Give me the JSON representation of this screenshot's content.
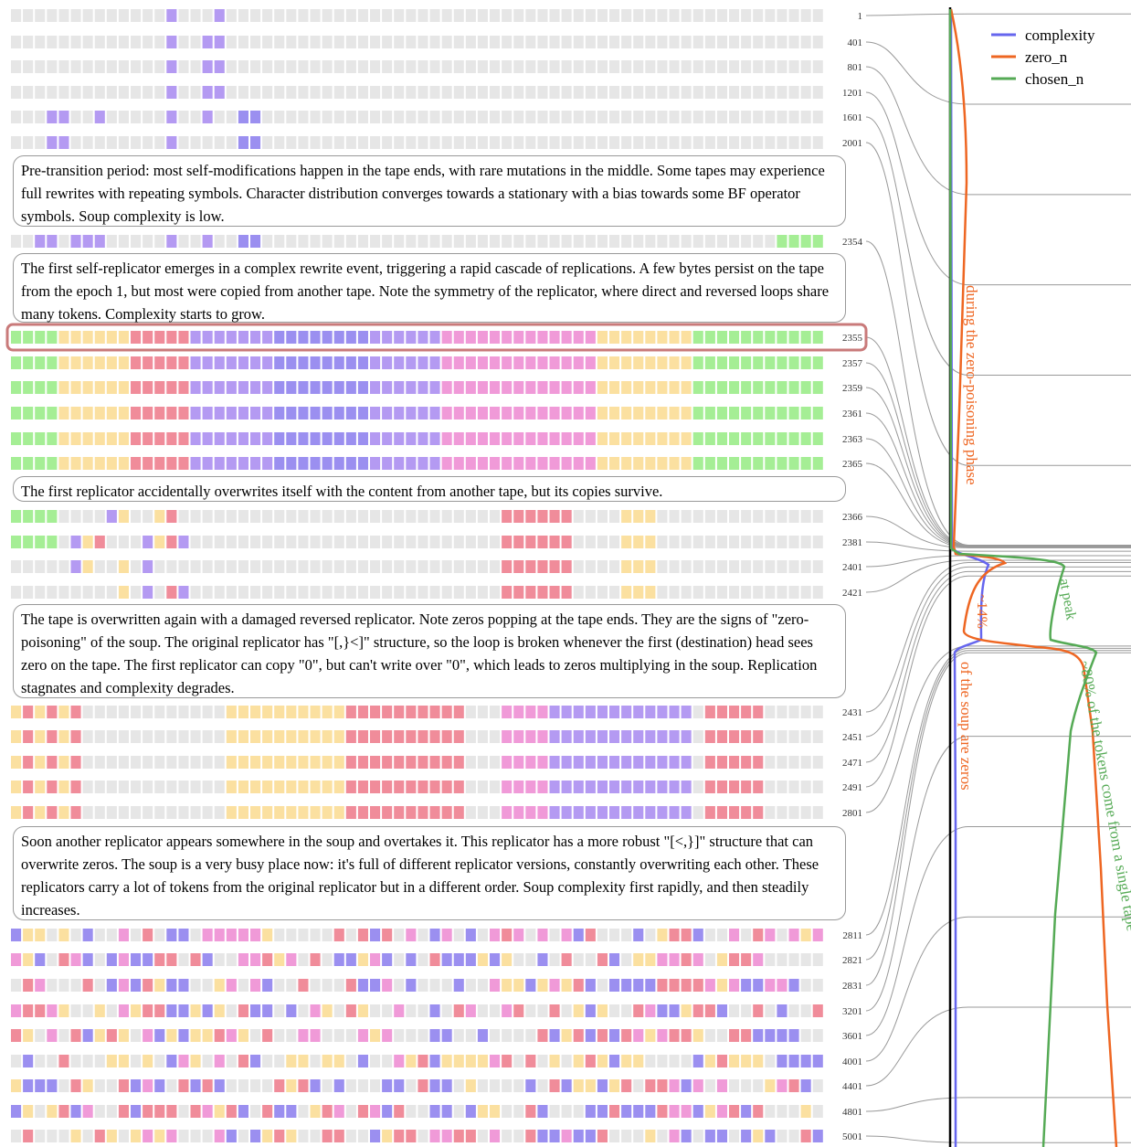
{
  "rows": [
    {
      "epoch": "1"
    },
    {
      "epoch": "401"
    },
    {
      "epoch": "801"
    },
    {
      "epoch": "1201"
    },
    {
      "epoch": "1601"
    },
    {
      "epoch": "2001"
    },
    {
      "epoch": "2354"
    },
    {
      "epoch": "2355"
    },
    {
      "epoch": "2357"
    },
    {
      "epoch": "2359"
    },
    {
      "epoch": "2361"
    },
    {
      "epoch": "2363"
    },
    {
      "epoch": "2365"
    },
    {
      "epoch": "2366"
    },
    {
      "epoch": "2381"
    },
    {
      "epoch": "2401"
    },
    {
      "epoch": "2421"
    },
    {
      "epoch": "2431"
    },
    {
      "epoch": "2451"
    },
    {
      "epoch": "2471"
    },
    {
      "epoch": "2491"
    },
    {
      "epoch": "2801"
    },
    {
      "epoch": "2811"
    },
    {
      "epoch": "2821"
    },
    {
      "epoch": "2831"
    },
    {
      "epoch": "3201"
    },
    {
      "epoch": "3601"
    },
    {
      "epoch": "4001"
    },
    {
      "epoch": "4401"
    },
    {
      "epoch": "4801"
    },
    {
      "epoch": "5001"
    }
  ],
  "notes": [
    "Pre-transition period: most self-modifications happen in the tape ends, with rare mutations in the middle. Some tapes may experience full rewrites with repeating symbols. Character distribution converges towards a stationary with a bias towards some BF operator symbols. Soup complexity is low.",
    "The first self-replicator emerges in a complex rewrite event, triggering a rapid cascade of replications. A few bytes persist on the tape from the epoch 1, but most were copied from another tape. Note the symmetry of the replicator, where direct and reversed loops share many tokens. Complexity starts to grow.",
    "The first replicator accidentally overwrites itself with the content from another tape, but its copies survive.",
    "The tape is overwritten again with a damaged reversed replicator. Note zeros popping at the tape ends. They are the signs of \"zero-poisoning\" of the soup. The original replicator has \"[,}<]\" structure, so the loop is broken whenever the first (destination) head sees zero on the tape. The first replicator can copy \"0\", but can't write over \"0\", which leads to zeros multiplying in the soup. Replication stagnates and complexity degrades.",
    "Soon another replicator appears somewhere in the soup and overtakes it. This replicator has a more robust \"[<,}]\" structure that can overwrite zeros. The soup is a very busy place now: it's full of different replicator versions, constantly overwriting each other. These replicators carry a lot of tokens from the original replicator but in a different order. Soup complexity first rapidly, and then steadily increases."
  ],
  "legend": [
    {
      "name": "complexity",
      "color": "#6666ee"
    },
    {
      "name": "zero_n",
      "color": "#ee6622"
    },
    {
      "name": "chosen_n",
      "color": "#55aa55"
    }
  ],
  "annotations": {
    "zero_phase": "during the zero-poisoning phase",
    "pct14": "~14%",
    "soup_zeros": "of the soup are zeros",
    "at_peak": "at peak",
    "pct80": "~80% of the tokens come from a single tape"
  }
}
